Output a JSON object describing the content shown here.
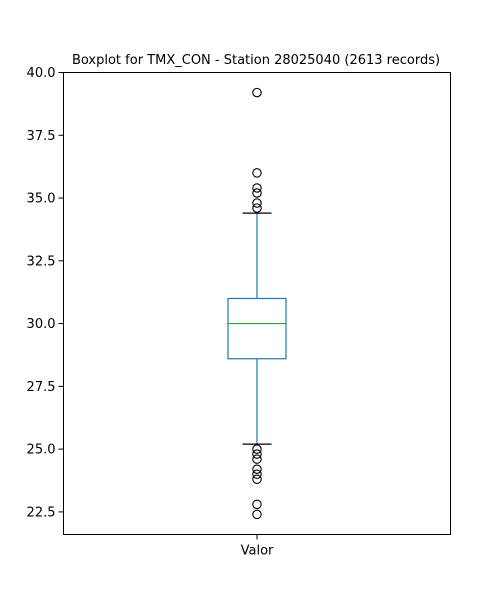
{
  "chart_data": {
    "type": "box",
    "title": "Boxplot for TMX_CON - Station 28025040 (2613 records)",
    "xlabel": "",
    "ylabel": "",
    "categories": [
      "Valor"
    ],
    "ylim": [
      21.6,
      40.0
    ],
    "y_ticks": [
      {
        "value": 22.5,
        "label": "22.5"
      },
      {
        "value": 25.0,
        "label": "25.0"
      },
      {
        "value": 27.5,
        "label": "27.5"
      },
      {
        "value": 30.0,
        "label": "30.0"
      },
      {
        "value": 32.5,
        "label": "32.5"
      },
      {
        "value": 35.0,
        "label": "35.0"
      },
      {
        "value": 37.5,
        "label": "37.5"
      },
      {
        "value": 40.0,
        "label": "40.0"
      }
    ],
    "grid": false,
    "series": [
      {
        "category": "Valor",
        "whisker_low": 25.2,
        "q1": 28.6,
        "median": 30.0,
        "q3": 31.0,
        "whisker_high": 34.4,
        "outliers": [
          39.2,
          36.0,
          35.4,
          35.2,
          34.8,
          34.6,
          25.0,
          24.8,
          24.6,
          24.2,
          24.0,
          23.8,
          22.8,
          22.4
        ]
      }
    ],
    "colors": {
      "box": "#1f77b4",
      "median": "#2ca02c",
      "whisker": "#1f77b4",
      "cap": "#000000",
      "outlier": "#000000"
    }
  }
}
